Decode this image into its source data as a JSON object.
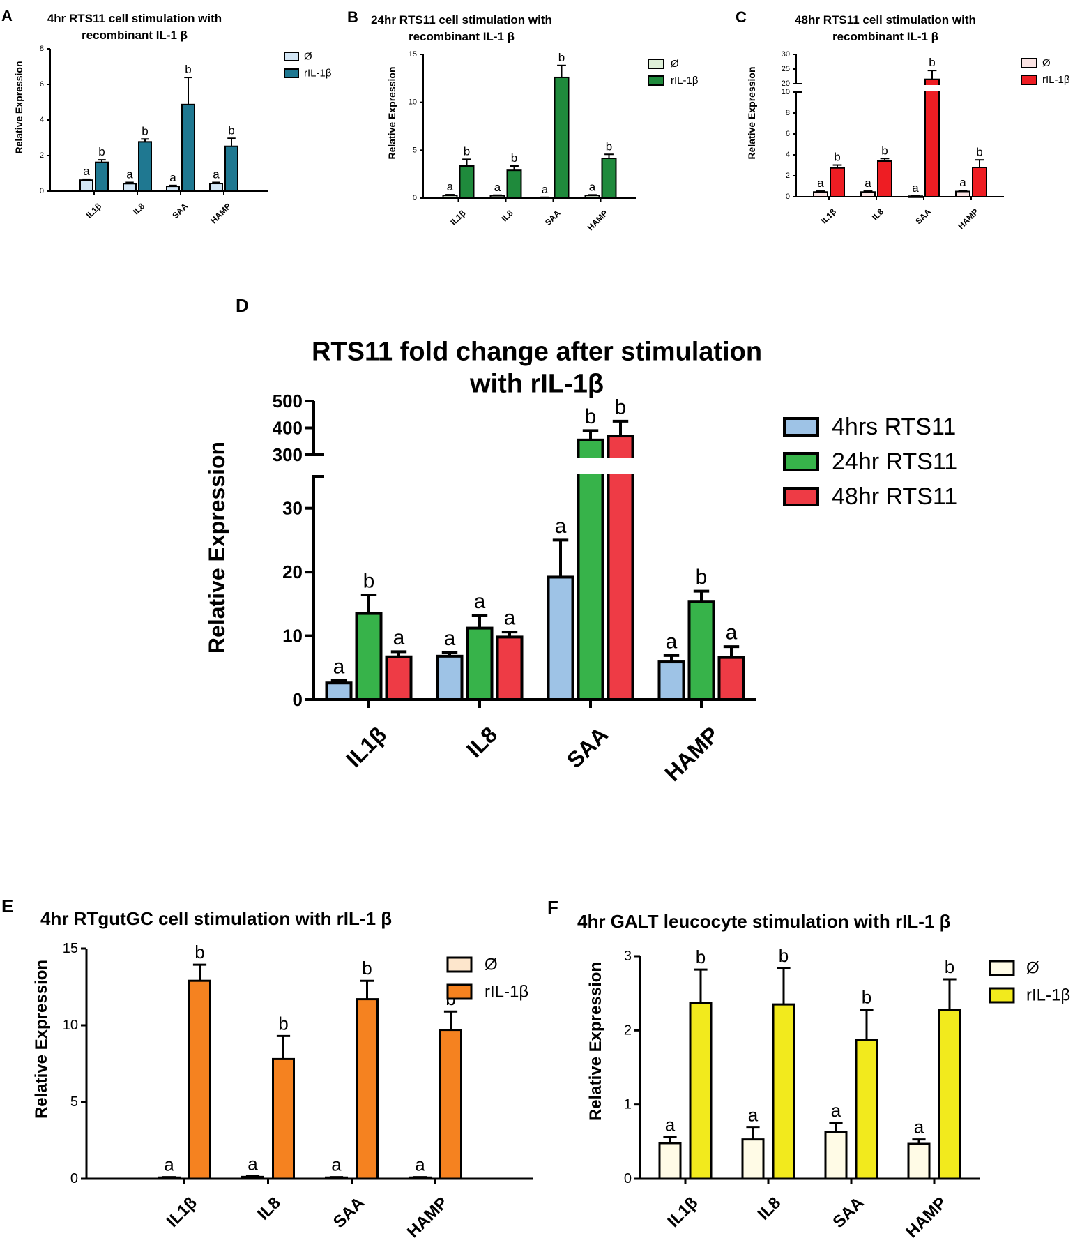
{
  "figure": {
    "background": "#ffffff",
    "axis_color": "#000000"
  },
  "chart_data": [
    {
      "id": "A",
      "panel_label": "A",
      "type": "bar",
      "title": [
        "4hr RTS11 cell stimulation with",
        "recombinant IL-1 β"
      ],
      "ylabel": "Relative Expression",
      "xlabel": "",
      "ylim": [
        0,
        8
      ],
      "yticks": [
        0,
        2,
        4,
        6,
        8
      ],
      "categories": [
        "IL1β",
        "IL8",
        "SAA",
        "HAMP"
      ],
      "series": [
        {
          "name": "Ø",
          "color": "#d3e6f5",
          "values": [
            0.62,
            0.42,
            0.27,
            0.43
          ],
          "errors": [
            0.05,
            0.07,
            0.05,
            0.06
          ],
          "letters": [
            "a",
            "a",
            "a",
            "a"
          ]
        },
        {
          "name": "rIL-1β",
          "color": "#1f7891",
          "values": [
            1.62,
            2.77,
            4.87,
            2.52
          ],
          "errors": [
            0.14,
            0.16,
            1.52,
            0.45
          ],
          "letters": [
            "b",
            "b",
            "b",
            "b"
          ]
        }
      ]
    },
    {
      "id": "B",
      "panel_label": "B",
      "type": "bar",
      "title": [
        "24hr RTS11 cell stimulation with",
        "recombinant IL-1 β"
      ],
      "ylabel": "Relative Expression",
      "xlabel": "",
      "ylim": [
        0,
        15
      ],
      "yticks": [
        0,
        5,
        10,
        15
      ],
      "categories": [
        "IL1β",
        "IL8",
        "SAA",
        "HAMP"
      ],
      "series": [
        {
          "name": "Ø",
          "color": "#dff0d8",
          "values": [
            0.28,
            0.25,
            0.06,
            0.28
          ],
          "errors": [
            0.08,
            0.06,
            0.03,
            0.06
          ],
          "letters": [
            "a",
            "a",
            "a",
            "a"
          ]
        },
        {
          "name": "rIL-1β",
          "color": "#1f8a3c",
          "values": [
            3.35,
            2.9,
            12.6,
            4.15
          ],
          "errors": [
            0.7,
            0.45,
            1.25,
            0.42
          ],
          "letters": [
            "b",
            "b",
            "b",
            "b"
          ]
        }
      ]
    },
    {
      "id": "C",
      "panel_label": "C",
      "type": "bar",
      "title": [
        "48hr RTS11 cell stimulation with",
        "recombinant IL-1 β"
      ],
      "ylabel": "Relative Expression",
      "xlabel": "",
      "ylim": [
        0,
        30
      ],
      "ybreak": [
        10,
        20
      ],
      "yticks": [
        0,
        2,
        4,
        6,
        8,
        10,
        20,
        25,
        30
      ],
      "categories": [
        "IL1β",
        "IL8",
        "SAA",
        "HAMP"
      ],
      "series": [
        {
          "name": "Ø",
          "color": "#fbe3e3",
          "values": [
            0.45,
            0.45,
            0.05,
            0.5
          ],
          "errors": [
            0.08,
            0.08,
            0.03,
            0.1
          ],
          "letters": [
            "a",
            "a",
            "a",
            "a"
          ]
        },
        {
          "name": "rIL-1β",
          "color": "#ee1d23",
          "values": [
            2.75,
            3.4,
            21.5,
            2.8
          ],
          "errors": [
            0.28,
            0.25,
            3.0,
            0.72
          ],
          "letters": [
            "b",
            "b",
            "b",
            "b"
          ]
        }
      ]
    },
    {
      "id": "D",
      "panel_label": "D",
      "type": "bar",
      "title": [
        "RTS11 fold change after stimulation",
        "with rIL-1β"
      ],
      "ylabel": "Relative Expression",
      "xlabel": "",
      "ylim": [
        0,
        500
      ],
      "ybreak": [
        35,
        300
      ],
      "yticks": [
        0,
        10,
        20,
        30,
        300,
        400,
        500
      ],
      "categories": [
        "IL1β",
        "IL8",
        "SAA",
        "HAMP"
      ],
      "series": [
        {
          "name": "4hrs RTS11",
          "color": "#9ec3e6",
          "values": [
            2.6,
            6.8,
            19.2,
            5.9
          ],
          "errors": [
            0.35,
            0.6,
            5.8,
            1.0
          ],
          "letters": [
            "a",
            "a",
            "a",
            "a"
          ]
        },
        {
          "name": "24hr RTS11",
          "color": "#37b34a",
          "values": [
            13.5,
            11.2,
            355,
            15.4
          ],
          "errors": [
            2.9,
            2.0,
            35,
            1.6
          ],
          "letters": [
            "b",
            "a",
            "b",
            "b"
          ]
        },
        {
          "name": "48hr RTS11",
          "color": "#ee3b45",
          "values": [
            6.7,
            9.8,
            370,
            6.6
          ],
          "errors": [
            0.8,
            0.8,
            55,
            1.7
          ],
          "letters": [
            "a",
            "a",
            "b",
            "a"
          ]
        }
      ]
    },
    {
      "id": "E",
      "panel_label": "E",
      "type": "bar",
      "title": [
        "4hr RTgutGC cell stimulation with rIL-1 β"
      ],
      "ylabel": "Relative Expression",
      "xlabel": "",
      "ylim": [
        0,
        15
      ],
      "yticks": [
        0,
        5,
        10,
        15
      ],
      "categories": [
        "IL1β",
        "IL8",
        "SAA",
        "HAMP"
      ],
      "series": [
        {
          "name": "Ø",
          "color": "#fde6cc",
          "values": [
            0.08,
            0.12,
            0.08,
            0.08
          ],
          "errors": [
            0.03,
            0.04,
            0.03,
            0.03
          ],
          "letters": [
            "a",
            "a",
            "a",
            "a"
          ]
        },
        {
          "name": "rIL-1β",
          "color": "#f58220",
          "values": [
            12.9,
            7.8,
            11.7,
            9.7
          ],
          "errors": [
            1.05,
            1.5,
            1.2,
            1.2
          ],
          "letters": [
            "b",
            "b",
            "b",
            "b"
          ]
        }
      ]
    },
    {
      "id": "F",
      "panel_label": "F",
      "type": "bar",
      "title": [
        "4hr GALT leucocyte stimulation with rIL-1 β"
      ],
      "ylabel": "Relative Expression",
      "xlabel": "",
      "ylim": [
        0,
        3
      ],
      "yticks": [
        0,
        1,
        2,
        3
      ],
      "categories": [
        "IL1β",
        "IL8",
        "SAA",
        "HAMP"
      ],
      "series": [
        {
          "name": "Ø",
          "color": "#fffbe6",
          "values": [
            0.48,
            0.53,
            0.63,
            0.47
          ],
          "errors": [
            0.08,
            0.16,
            0.12,
            0.06
          ],
          "letters": [
            "a",
            "a",
            "a",
            "a"
          ]
        },
        {
          "name": "rIL-1β",
          "color": "#f2ea1d",
          "values": [
            2.37,
            2.35,
            1.87,
            2.28
          ],
          "errors": [
            0.45,
            0.49,
            0.41,
            0.41
          ],
          "letters": [
            "b",
            "b",
            "b",
            "b"
          ]
        }
      ]
    }
  ]
}
